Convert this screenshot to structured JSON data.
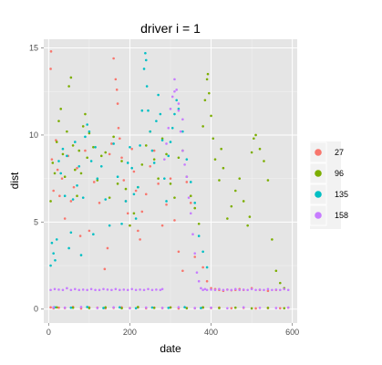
{
  "chart_data": {
    "type": "scatter",
    "title": "driver i = 1",
    "xlabel": "date",
    "ylabel": "dist",
    "xlim": [
      -12,
      612
    ],
    "ylim": [
      -0.8,
      15.5
    ],
    "x_ticks": [
      0,
      200,
      400,
      600
    ],
    "y_ticks": [
      0,
      5,
      10,
      15
    ],
    "grid": true,
    "legend_position": "right",
    "series": [
      {
        "name": "27",
        "color": "#F8766D",
        "x": [
          5,
          8,
          12,
          18,
          22,
          27,
          33,
          40,
          48,
          55,
          62,
          70,
          78,
          90,
          100,
          112,
          125,
          138,
          145,
          150,
          155,
          160,
          165,
          168,
          170,
          172,
          175,
          180,
          185,
          190,
          195,
          200,
          205,
          210,
          215,
          220,
          225,
          230,
          240,
          250,
          260,
          270,
          280,
          290,
          300,
          310,
          320,
          330,
          340,
          350,
          360,
          380,
          390,
          400,
          410,
          420,
          430,
          440,
          450,
          460,
          470,
          480,
          500,
          520,
          540,
          560,
          580,
          5,
          12,
          25,
          40,
          60,
          80,
          100,
          120,
          140,
          160,
          180,
          200,
          220,
          240,
          260,
          280,
          300,
          320,
          340,
          360,
          380,
          400,
          420,
          450,
          480,
          510,
          540,
          570,
          590,
          6
        ],
        "y": [
          13.8,
          8.6,
          6.8,
          9.7,
          8.0,
          6.5,
          7.5,
          5.2,
          8.8,
          6.2,
          7.0,
          8.1,
          4.2,
          9.1,
          4.5,
          7.3,
          6.1,
          2.3,
          3.5,
          8.9,
          9.5,
          14.4,
          13.2,
          12.6,
          11.8,
          10.4,
          9.8,
          8.7,
          7.4,
          6.2,
          5.5,
          4.8,
          9.2,
          7.9,
          6.8,
          4.5,
          4.0,
          5.6,
          6.6,
          8.2,
          9.1,
          7.2,
          4.8,
          6.0,
          7.5,
          5.1,
          3.3,
          2.2,
          7.3,
          6.1,
          3.0,
          2.4,
          1.6,
          1.2,
          1.15,
          1.1,
          1.05,
          1.12,
          1.08,
          1.1,
          1.15,
          1.1,
          1.2,
          1.1,
          1.05,
          1.1,
          1.15,
          0.1,
          0.05,
          0.08,
          0.06,
          0.12,
          0.04,
          0.1,
          0.08,
          0.05,
          0.07,
          0.1,
          0.06,
          0.09,
          0.05,
          0.08,
          0.06,
          0.1,
          0.04,
          0.07,
          0.05,
          0.08,
          0.06,
          0.09,
          0.05,
          0.07,
          0.04,
          0.06,
          0.05,
          0.08,
          14.8
        ]
      },
      {
        "name": "96",
        "color": "#7CAE00",
        "x": [
          5,
          10,
          15,
          20,
          25,
          30,
          35,
          40,
          45,
          50,
          55,
          60,
          65,
          70,
          75,
          80,
          85,
          90,
          95,
          100,
          110,
          120,
          130,
          140,
          150,
          160,
          170,
          180,
          190,
          200,
          210,
          220,
          230,
          240,
          250,
          260,
          270,
          280,
          290,
          300,
          310,
          320,
          330,
          340,
          350,
          360,
          370,
          380,
          385,
          390,
          392,
          395,
          400,
          405,
          410,
          420,
          425,
          430,
          440,
          450,
          460,
          470,
          480,
          490,
          495,
          500,
          505,
          510,
          520,
          530,
          540,
          550,
          560,
          570,
          580,
          20,
          60,
          100,
          140,
          180,
          220,
          260,
          300,
          340,
          380,
          420,
          460,
          500,
          540,
          580
        ],
        "y": [
          6.2,
          8.4,
          7.8,
          9.6,
          10.8,
          11.5,
          8.9,
          7.6,
          10.2,
          12.8,
          13.3,
          9.4,
          8.0,
          6.5,
          9.1,
          7.8,
          10.5,
          11.2,
          8.7,
          10.1,
          9.3,
          7.4,
          8.8,
          9.0,
          6.4,
          9.9,
          7.2,
          8.5,
          6.9,
          4.8,
          5.5,
          7.0,
          8.3,
          9.4,
          10.2,
          8.6,
          7.5,
          9.8,
          8.9,
          7.2,
          6.4,
          8.7,
          9.1,
          7.6,
          6.5,
          5.8,
          4.9,
          10.5,
          12.0,
          13.2,
          13.5,
          12.4,
          11.1,
          9.8,
          8.6,
          7.4,
          9.2,
          8.1,
          5.2,
          5.9,
          6.8,
          7.5,
          6.2,
          4.8,
          5.3,
          9.0,
          9.8,
          10.0,
          9.2,
          8.5,
          7.4,
          4.0,
          2.2,
          1.5,
          1.2,
          0.1,
          0.08,
          0.06,
          0.1,
          0.05,
          0.12,
          0.07,
          0.09,
          0.05,
          0.1,
          0.06,
          0.08,
          0.04,
          0.07,
          0.05
        ]
      },
      {
        "name": "135",
        "color": "#00BFC4",
        "x": [
          5,
          8,
          12,
          16,
          20,
          25,
          30,
          35,
          40,
          45,
          50,
          55,
          60,
          65,
          70,
          75,
          80,
          85,
          90,
          95,
          100,
          105,
          110,
          115,
          120,
          130,
          140,
          150,
          160,
          170,
          180,
          190,
          195,
          200,
          205,
          210,
          215,
          220,
          225,
          230,
          235,
          238,
          240,
          242,
          245,
          250,
          255,
          260,
          265,
          270,
          275,
          280,
          285,
          290,
          295,
          300,
          305,
          310,
          315,
          320,
          330,
          340,
          350,
          360,
          370,
          380,
          390,
          15,
          55,
          95,
          135,
          175,
          215,
          255,
          295,
          335,
          375
        ],
        "y": [
          2.5,
          3.8,
          3.2,
          2.8,
          4.0,
          8.5,
          7.8,
          9.2,
          6.5,
          8.8,
          3.5,
          4.4,
          6.3,
          9.6,
          7.1,
          8.2,
          3.1,
          6.4,
          9.9,
          10.6,
          10.2,
          8.5,
          4.3,
          9.3,
          7.5,
          8.2,
          6.3,
          4.8,
          9.5,
          7.6,
          4.9,
          6.2,
          8.4,
          9.3,
          8.1,
          6.6,
          5.2,
          7.0,
          9.4,
          11.4,
          13.8,
          14.7,
          14.3,
          12.8,
          11.4,
          10.2,
          9.1,
          8.4,
          10.8,
          12.3,
          11.2,
          9.7,
          7.5,
          6.2,
          8.8,
          9.6,
          10.4,
          11.2,
          12.0,
          11.5,
          10.2,
          8.6,
          7.3,
          6.1,
          4.2,
          3.3,
          2.4,
          0.1,
          0.08,
          0.12,
          0.06,
          0.1,
          0.05,
          0.09,
          0.07,
          0.11,
          0.06
        ]
      },
      {
        "name": "158",
        "color": "#C77CFF",
        "x": [
          5,
          15,
          25,
          35,
          45,
          55,
          65,
          75,
          85,
          95,
          105,
          115,
          125,
          135,
          145,
          155,
          165,
          175,
          185,
          195,
          205,
          215,
          225,
          235,
          245,
          255,
          265,
          275,
          280,
          285,
          290,
          295,
          300,
          305,
          310,
          315,
          320,
          325,
          330,
          335,
          340,
          345,
          350,
          355,
          360,
          365,
          370,
          375,
          380,
          385,
          390,
          400,
          410,
          420,
          430,
          440,
          450,
          460,
          470,
          480,
          490,
          500,
          510,
          520,
          530,
          540,
          550,
          560,
          570,
          580,
          590,
          12,
          40,
          80,
          120,
          160,
          200,
          240,
          280,
          320,
          360,
          400,
          440,
          480,
          520,
          560,
          590,
          310,
          320,
          330
        ],
        "y": [
          1.1,
          1.15,
          1.12,
          1.1,
          1.2,
          1.1,
          1.15,
          1.1,
          1.12,
          1.1,
          1.15,
          1.1,
          1.1,
          1.15,
          1.12,
          1.1,
          1.15,
          1.1,
          1.12,
          1.1,
          1.15,
          1.1,
          1.12,
          1.1,
          1.15,
          1.1,
          1.12,
          1.1,
          1.15,
          8.6,
          9.5,
          10.4,
          11.5,
          12.2,
          13.2,
          12.6,
          11.4,
          10.2,
          9.1,
          8.3,
          7.6,
          6.4,
          5.5,
          4.3,
          3.2,
          2.1,
          1.6,
          1.2,
          1.1,
          1.15,
          1.1,
          1.12,
          1.1,
          1.15,
          1.1,
          1.12,
          1.1,
          1.15,
          1.1,
          1.12,
          1.1,
          1.15,
          1.1,
          1.12,
          1.1,
          1.15,
          1.1,
          1.12,
          1.1,
          1.15,
          1.1,
          0.1,
          0.08,
          0.12,
          0.06,
          0.1,
          0.05,
          0.09,
          0.07,
          0.11,
          0.06,
          0.08,
          0.05,
          0.1,
          0.07,
          0.06,
          0.09,
          12.5,
          11.8,
          10.9
        ]
      }
    ]
  }
}
